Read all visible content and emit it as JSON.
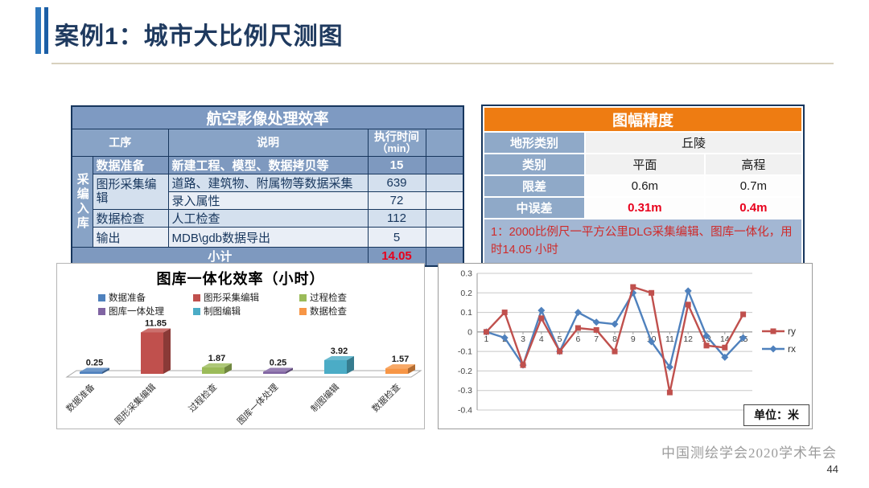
{
  "slide": {
    "title": "案例1：城市大比例尺测图",
    "footer": "中国测绘学会2020学术年会",
    "page_number": "44"
  },
  "left_table": {
    "title": "航空影像处理效率",
    "header": {
      "process": "工序",
      "description": "说明",
      "time_line1": "执行时间",
      "time_line2": "（min）"
    },
    "group_label": "采编入库",
    "rows": [
      {
        "process": "数据准备",
        "desc": "新建工程、模型、数据拷贝等",
        "time": "15"
      },
      {
        "process": "图形采集编辑",
        "desc": "道路、建筑物、附属物等数据采集",
        "time": "639"
      },
      {
        "process": "",
        "desc": "录入属性",
        "time": "72"
      },
      {
        "process": "数据检查",
        "desc": "人工检查",
        "time": "112"
      },
      {
        "process": "输出",
        "desc": "MDB\\gdb数据导出",
        "time": "5"
      }
    ],
    "subtotal_label": "小计",
    "subtotal_value": "14.05"
  },
  "right_table": {
    "title": "图幅精度",
    "terrain_label": "地形类别",
    "terrain_value": "丘陵",
    "category_label": "类别",
    "category_plane": "平面",
    "category_height": "高程",
    "tolerance_label": "限差",
    "tolerance_plane": "0.6m",
    "tolerance_height": "0.7m",
    "rmse_label": "中误差",
    "rmse_plane": "0.31m",
    "rmse_height": "0.4m",
    "note": "1：2000比例尺一平方公里DLG采集编辑、图库一体化，用时14.05 小时"
  },
  "chart_data": [
    {
      "type": "bar",
      "style": "3d",
      "title": "图库一体化效率（小时）",
      "categories": [
        "数据准备",
        "图形采集编辑",
        "过程检查",
        "图库一体处理",
        "制图编辑",
        "数据检查"
      ],
      "values": [
        0.25,
        11.85,
        1.87,
        0.25,
        3.92,
        1.57
      ],
      "colors": [
        "#4F81BD",
        "#C0504D",
        "#9BBB59",
        "#8064A2",
        "#4BACC6",
        "#F79646"
      ],
      "legend_position": "top",
      "ylim": [
        0,
        12
      ],
      "grid": false
    },
    {
      "type": "line",
      "x": [
        1,
        2,
        3,
        4,
        5,
        6,
        7,
        8,
        9,
        10,
        11,
        12,
        13,
        14,
        15
      ],
      "series": [
        {
          "name": "ry",
          "color": "#C0504D",
          "marker": "square",
          "values": [
            0,
            0.1,
            -0.17,
            0.07,
            -0.1,
            0.02,
            0.01,
            -0.1,
            0.23,
            0.2,
            -0.31,
            0.14,
            -0.07,
            -0.08,
            0.09
          ]
        },
        {
          "name": "rx",
          "color": "#4F81BD",
          "marker": "diamond",
          "values": [
            0,
            -0.03,
            -0.17,
            0.11,
            -0.1,
            0.1,
            0.05,
            0.04,
            0.2,
            -0.05,
            -0.18,
            0.21,
            -0.02,
            -0.13,
            -0.03
          ]
        }
      ],
      "ylim": [
        -0.4,
        0.3
      ],
      "ytick_step": 0.1,
      "ytick_labels": [
        "0.3",
        "0.2",
        "0.1",
        "0",
        "-0.1",
        "-0.2",
        "-0.3",
        "-0.4"
      ],
      "grid": true,
      "legend_position": "right",
      "unit_label": "单位：米"
    }
  ]
}
